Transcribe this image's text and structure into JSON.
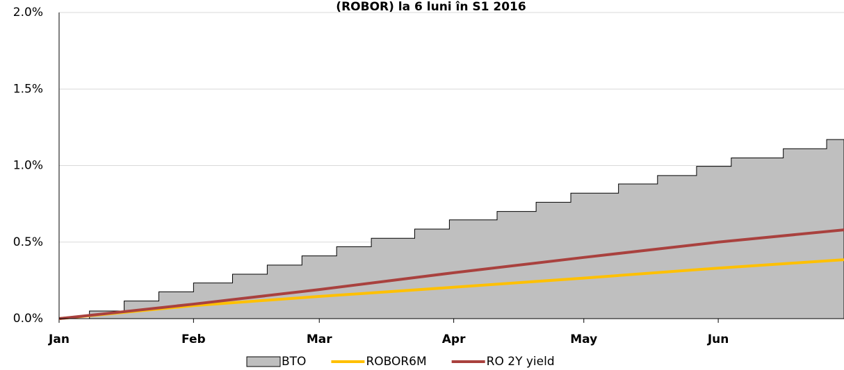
{
  "chart_data": {
    "type": "line",
    "title": "(ROBOR) la 6 luni în S1 2016",
    "xlim": [
      1,
      182
    ],
    "xticks": [
      {
        "value": 1,
        "label": "Jan"
      },
      {
        "value": 32,
        "label": "Feb"
      },
      {
        "value": 61,
        "label": "Mar"
      },
      {
        "value": 92,
        "label": "Apr"
      },
      {
        "value": 122,
        "label": "May"
      },
      {
        "value": 153,
        "label": "Jun"
      }
    ],
    "ylim": [
      0,
      2.0
    ],
    "yticks": [
      {
        "value": 0,
        "label": "0.0%"
      },
      {
        "value": 0.5,
        "label": "0.5%"
      },
      {
        "value": 1.0,
        "label": "1.0%"
      },
      {
        "value": 1.5,
        "label": "1.5%"
      },
      {
        "value": 2.0,
        "label": "2.0%"
      }
    ],
    "grid": true,
    "legend": "bottom",
    "series": [
      {
        "name": "BTO",
        "kind": "step-area",
        "color": "#bfbfbf",
        "x": [
          1,
          8,
          16,
          24,
          32,
          41,
          49,
          57,
          65,
          73,
          83,
          91,
          102,
          111,
          119,
          130,
          139,
          148,
          156,
          168,
          178,
          182
        ],
        "values": [
          0,
          0.05,
          0.115,
          0.175,
          0.233,
          0.29,
          0.35,
          0.41,
          0.47,
          0.525,
          0.585,
          0.645,
          0.7,
          0.76,
          0.82,
          0.88,
          0.935,
          0.995,
          1.05,
          1.11,
          1.17,
          1.17
        ]
      },
      {
        "name": "ROBOR6M",
        "kind": "line",
        "color": "#ffc000",
        "x": [
          1,
          32,
          61,
          92,
          122,
          153,
          182
        ],
        "values": [
          0,
          0.085,
          0.145,
          0.205,
          0.265,
          0.33,
          0.385
        ]
      },
      {
        "name": "RO 2Y yield",
        "kind": "line",
        "color": "#a9413e",
        "x": [
          1,
          32,
          61,
          92,
          122,
          153,
          182
        ],
        "values": [
          0,
          0.095,
          0.19,
          0.3,
          0.4,
          0.5,
          0.58
        ]
      }
    ]
  }
}
